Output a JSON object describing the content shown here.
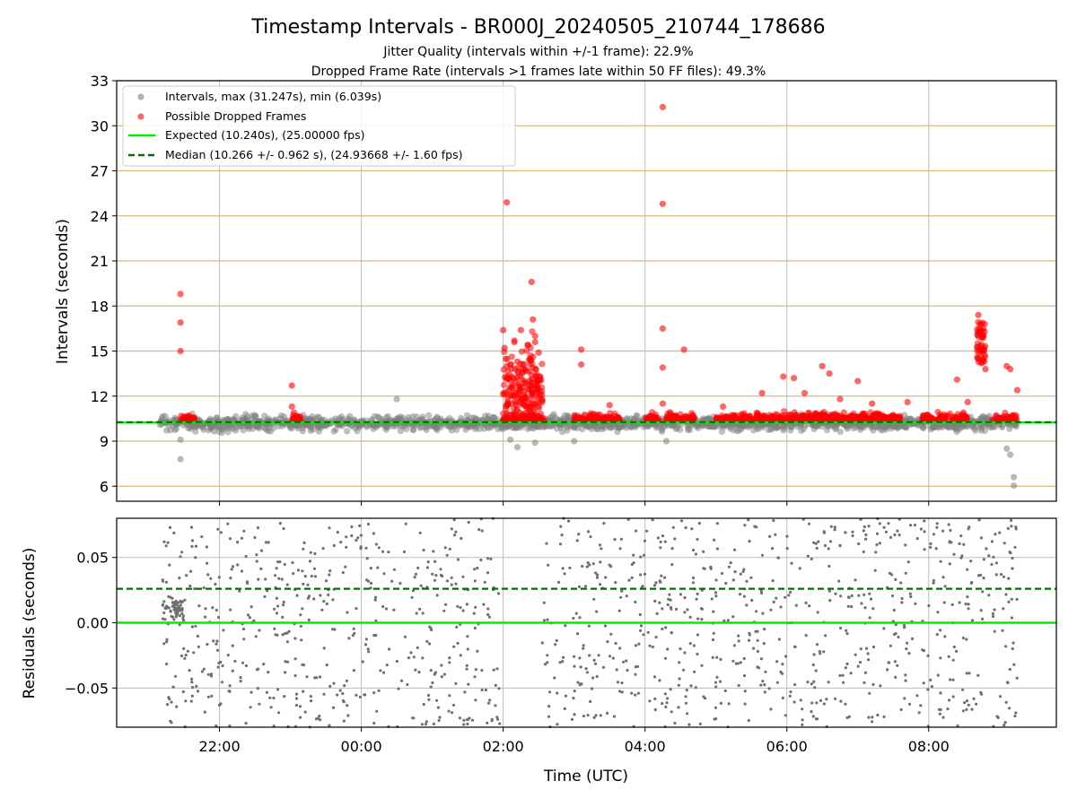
{
  "chart_data": [
    {
      "type": "scatter",
      "title": "Timestamp Intervals - BR000J_20240505_210744_178686",
      "subtitle_1": "Jitter Quality (intervals within +/-1 frame): 22.9%",
      "subtitle_2": "Dropped Frame Rate (intervals >1 frames late within 50 FF files): 49.3%",
      "ylabel": "Intervals (seconds)",
      "ylim": [
        5,
        33
      ],
      "yticks": [
        "6",
        "9",
        "12",
        "15",
        "18",
        "21",
        "24",
        "27",
        "30",
        "33"
      ],
      "xlim_hours": [
        -3.45,
        9.8
      ],
      "grid": true,
      "legend_position": "upper-left",
      "legend": [
        {
          "label": "Intervals, max (31.247s), min (6.039s)",
          "marker": "dot",
          "color": "#808080"
        },
        {
          "label": "Possible Dropped Frames",
          "marker": "dot",
          "color": "#ff0000"
        },
        {
          "label": "Expected (10.240s), (25.00000 fps)",
          "marker": "solid-line",
          "color": "#00ee00"
        },
        {
          "label": "Median (10.266 +/- 0.962 s), (24.93668 +/- 1.60 fps)",
          "marker": "dashed-line",
          "color": "#007000"
        }
      ],
      "expected": 10.24,
      "median": 10.266,
      "max_interval": 31.247,
      "min_interval": 6.039,
      "series": [
        {
          "name": "Intervals",
          "color": "#808080",
          "x_hours": [
            -2.75,
            -2.6,
            -2.45,
            -2.3,
            -2.15,
            -2.0,
            -1.8,
            -1.5,
            -1.2,
            -0.9,
            -0.6,
            -0.3,
            0.0,
            0.3,
            0.6,
            0.9,
            1.2,
            1.5,
            1.8,
            2.05,
            2.3,
            2.55,
            2.8,
            3.1,
            3.4,
            3.7,
            4.0,
            4.3,
            4.6,
            4.9,
            5.2,
            5.5,
            5.8,
            6.1,
            6.4,
            6.7,
            7.0,
            7.3,
            7.6,
            7.9,
            8.2,
            8.5,
            8.8,
            9.1,
            9.2,
            9.2,
            9.15,
            -2.55,
            -2.55,
            0.5,
            2.1,
            3.0,
            4.3,
            2.45,
            2.2
          ],
          "y": [
            10.3,
            10.2,
            10.3,
            10.1,
            10.2,
            10.2,
            10.4,
            10.1,
            10.3,
            10.0,
            10.2,
            10.1,
            10.3,
            10.2,
            10.0,
            10.2,
            10.3,
            10.1,
            10.2,
            10.0,
            10.2,
            10.3,
            10.1,
            10.2,
            10.0,
            10.3,
            10.1,
            10.2,
            10.3,
            10.0,
            10.2,
            10.1,
            10.3,
            10.2,
            10.0,
            10.3,
            10.1,
            10.2,
            10.1,
            10.2,
            10.3,
            10.0,
            10.2,
            8.5,
            6.6,
            6.039,
            8.1,
            9.1,
            7.8,
            11.8,
            9.1,
            9.0,
            9.0,
            8.9,
            8.6
          ]
        },
        {
          "name": "Possible Dropped Frames",
          "color": "#ff0000",
          "x_hours": [
            -2.55,
            -2.55,
            -2.55,
            -0.98,
            -0.98,
            -0.95,
            2.0,
            2.02,
            2.05,
            2.08,
            2.1,
            2.12,
            2.15,
            2.18,
            2.2,
            2.22,
            2.25,
            2.28,
            2.3,
            2.35,
            2.38,
            2.4,
            2.42,
            2.45,
            2.48,
            2.5,
            2.52,
            2.55,
            2.05,
            2.4,
            2.45,
            2.3,
            3.1,
            3.1,
            4.25,
            4.25,
            4.25,
            4.25,
            4.25,
            4.55,
            5.65,
            5.95,
            6.1,
            6.25,
            6.5,
            6.6,
            6.75,
            7.0,
            7.2,
            8.4,
            8.7,
            8.72,
            8.75,
            8.78,
            8.7,
            8.74,
            8.8,
            9.1,
            9.15,
            9.25,
            5.1,
            3.5,
            7.7,
            8.55
          ],
          "y": [
            18.8,
            16.9,
            15.0,
            12.7,
            11.3,
            10.9,
            16.4,
            15.2,
            14.0,
            13.2,
            12.6,
            13.8,
            12.0,
            11.4,
            14.3,
            12.8,
            16.4,
            13.6,
            11.9,
            15.4,
            14.5,
            13.4,
            17.1,
            16.0,
            12.4,
            14.9,
            13.3,
            11.6,
            24.9,
            19.6,
            15.6,
            13.0,
            15.1,
            14.1,
            31.247,
            24.8,
            16.5,
            13.9,
            11.5,
            15.1,
            12.2,
            13.3,
            13.2,
            12.2,
            14.0,
            13.5,
            11.8,
            13.0,
            11.5,
            13.1,
            17.4,
            16.8,
            15.9,
            15.2,
            14.5,
            14.2,
            13.8,
            14.0,
            13.8,
            12.4,
            11.3,
            11.4,
            11.6,
            11.6
          ]
        },
        {
          "name": "Dropped Frame Band",
          "color": "#ff0000",
          "x_start_hours": [
            -2.55,
            -1.0,
            2.0,
            3.0,
            4.0,
            4.3,
            5.0,
            6.2,
            7.9,
            8.9
          ],
          "x_end_hours": [
            -2.35,
            -0.85,
            2.6,
            3.65,
            4.2,
            4.7,
            7.6,
            7.6,
            8.55,
            9.25
          ],
          "y_center": 10.45
        }
      ]
    },
    {
      "type": "scatter",
      "xlabel": "Time (UTC)",
      "ylabel": "Residuals (seconds)",
      "ylim": [
        -0.08,
        0.08
      ],
      "yticks": [
        "0.05",
        "0.00",
        "−0.05"
      ],
      "ytick_values": [
        0.05,
        0.0,
        -0.05
      ],
      "xticks": [
        "22:00",
        "00:00",
        "02:00",
        "04:00",
        "06:00",
        "08:00"
      ],
      "xtick_hours": [
        -2,
        0,
        2,
        4,
        6,
        8
      ],
      "xlim_hours": [
        -3.45,
        9.8
      ],
      "grid": true,
      "expected_residual": 0.0,
      "median_residual": 0.026,
      "series": [
        {
          "name": "Residuals",
          "color": "#707070",
          "x_range_hours": [
            [
              -2.85,
              1.95
            ],
            [
              2.55,
              9.25
            ]
          ],
          "y_range": [
            -0.08,
            0.08
          ],
          "cluster_hours": [
            -2.8,
            -2.5
          ],
          "cluster_y": 0.01
        }
      ]
    }
  ]
}
